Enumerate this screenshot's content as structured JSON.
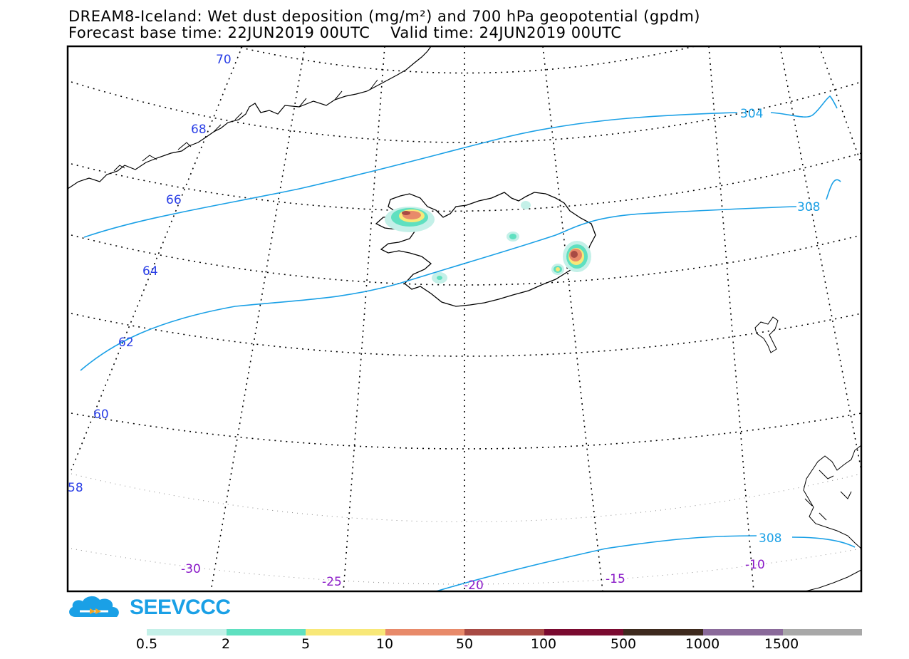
{
  "header": {
    "title_line1": "DREAM8-Iceland: Wet dust deposition (mg/m²) and 700 hPa geopotential (gpdm)",
    "title_line2": "Forecast base time: 22JUN2019 00UTC    Valid time: 24JUN2019 00UTC"
  },
  "map": {
    "lat_labels": [
      "70",
      "68",
      "66",
      "64",
      "62",
      "60",
      "58"
    ],
    "lon_labels": [
      "-30",
      "-25",
      "-20",
      "-15",
      "-10"
    ],
    "contour_labels": [
      "304",
      "308",
      "308"
    ],
    "colors": {
      "latlon_label": "#2a3fe6",
      "lon_label": "#8a1ac8",
      "contour": "#1aa0e6",
      "coast": "#000000"
    }
  },
  "logo": {
    "text": "SEEVCCC",
    "icon": "cloud-icon"
  },
  "legend": {
    "labels": [
      "0.5",
      "2",
      "5",
      "10",
      "50",
      "100",
      "500",
      "1000",
      "1500"
    ],
    "colors": [
      "#c4f0e8",
      "#5fe0c0",
      "#f8e878",
      "#e88a6a",
      "#a84a44",
      "#7a0a30",
      "#3e2a1e",
      "#8a6a9a",
      "#a8a8a8"
    ]
  }
}
